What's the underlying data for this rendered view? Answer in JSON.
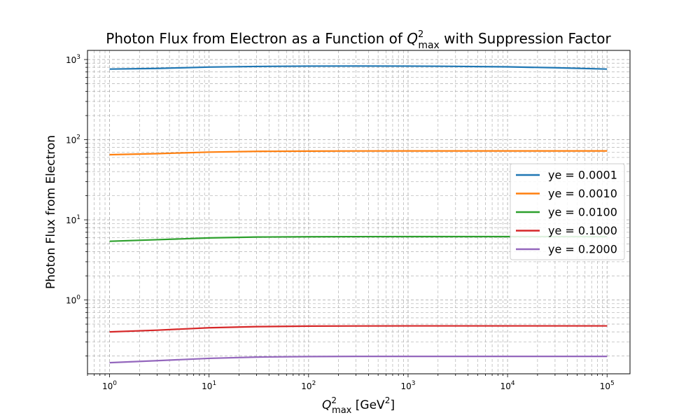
{
  "chart_data": {
    "type": "line",
    "title_main": "Photon Flux from Electron as a Function of ",
    "title_math": "Q",
    "title_sup": "2",
    "title_sub": "max",
    "title_tail": " with Suppression Factor",
    "xlabel_math": "Q",
    "xlabel_sup": "2",
    "xlabel_sub": "max",
    "xlabel_unit_pre": " [GeV",
    "xlabel_unit_sup": "2",
    "xlabel_unit_post": "]",
    "ylabel": "Photon Flux from Electron",
    "x_scale": "log",
    "y_scale": "log",
    "xlim": [
      0.6,
      170000
    ],
    "ylim": [
      0.12,
      1300
    ],
    "grid": true,
    "legend_position": "center-right",
    "x_ticks": [
      {
        "value": 1,
        "base": "10",
        "exp": "0"
      },
      {
        "value": 10,
        "base": "10",
        "exp": "1"
      },
      {
        "value": 100,
        "base": "10",
        "exp": "2"
      },
      {
        "value": 1000,
        "base": "10",
        "exp": "3"
      },
      {
        "value": 10000,
        "base": "10",
        "exp": "4"
      },
      {
        "value": 100000,
        "base": "10",
        "exp": "5"
      }
    ],
    "y_ticks": [
      {
        "value": 1,
        "base": "10",
        "exp": "0"
      },
      {
        "value": 10,
        "base": "10",
        "exp": "1"
      },
      {
        "value": 100,
        "base": "10",
        "exp": "2"
      },
      {
        "value": 1000,
        "base": "10",
        "exp": "3"
      }
    ],
    "series": [
      {
        "name": "ye = 0.0001",
        "color": "#1f77b4",
        "x": [
          1,
          3,
          10,
          30,
          100,
          300,
          1000,
          3000,
          10000,
          30000,
          100000
        ],
        "y": [
          760,
          775,
          805,
          820,
          828,
          830,
          828,
          822,
          810,
          790,
          760
        ]
      },
      {
        "name": "ye = 0.0010",
        "color": "#ff7f0e",
        "x": [
          1,
          3,
          10,
          30,
          100,
          300,
          1000,
          3000,
          10000,
          30000,
          100000
        ],
        "y": [
          65,
          67,
          70,
          71.5,
          72,
          72.3,
          72.4,
          72.4,
          72.4,
          72.4,
          72.4
        ]
      },
      {
        "name": "ye = 0.0100",
        "color": "#2ca02c",
        "x": [
          1,
          3,
          10,
          30,
          100,
          300,
          1000,
          3000,
          10000,
          30000,
          100000
        ],
        "y": [
          5.4,
          5.65,
          5.95,
          6.1,
          6.15,
          6.17,
          6.18,
          6.18,
          6.18,
          6.18,
          6.18
        ]
      },
      {
        "name": "ye = 0.1000",
        "color": "#d62728",
        "x": [
          1,
          3,
          10,
          30,
          100,
          300,
          1000,
          3000,
          10000,
          30000,
          100000
        ],
        "y": [
          0.4,
          0.42,
          0.45,
          0.465,
          0.472,
          0.474,
          0.475,
          0.475,
          0.475,
          0.475,
          0.475
        ]
      },
      {
        "name": "ye = 0.2000",
        "color": "#9467bd",
        "x": [
          1,
          3,
          10,
          30,
          100,
          300,
          1000,
          3000,
          10000,
          30000,
          100000
        ],
        "y": [
          0.165,
          0.175,
          0.187,
          0.194,
          0.197,
          0.198,
          0.198,
          0.198,
          0.198,
          0.198,
          0.198
        ]
      }
    ]
  }
}
